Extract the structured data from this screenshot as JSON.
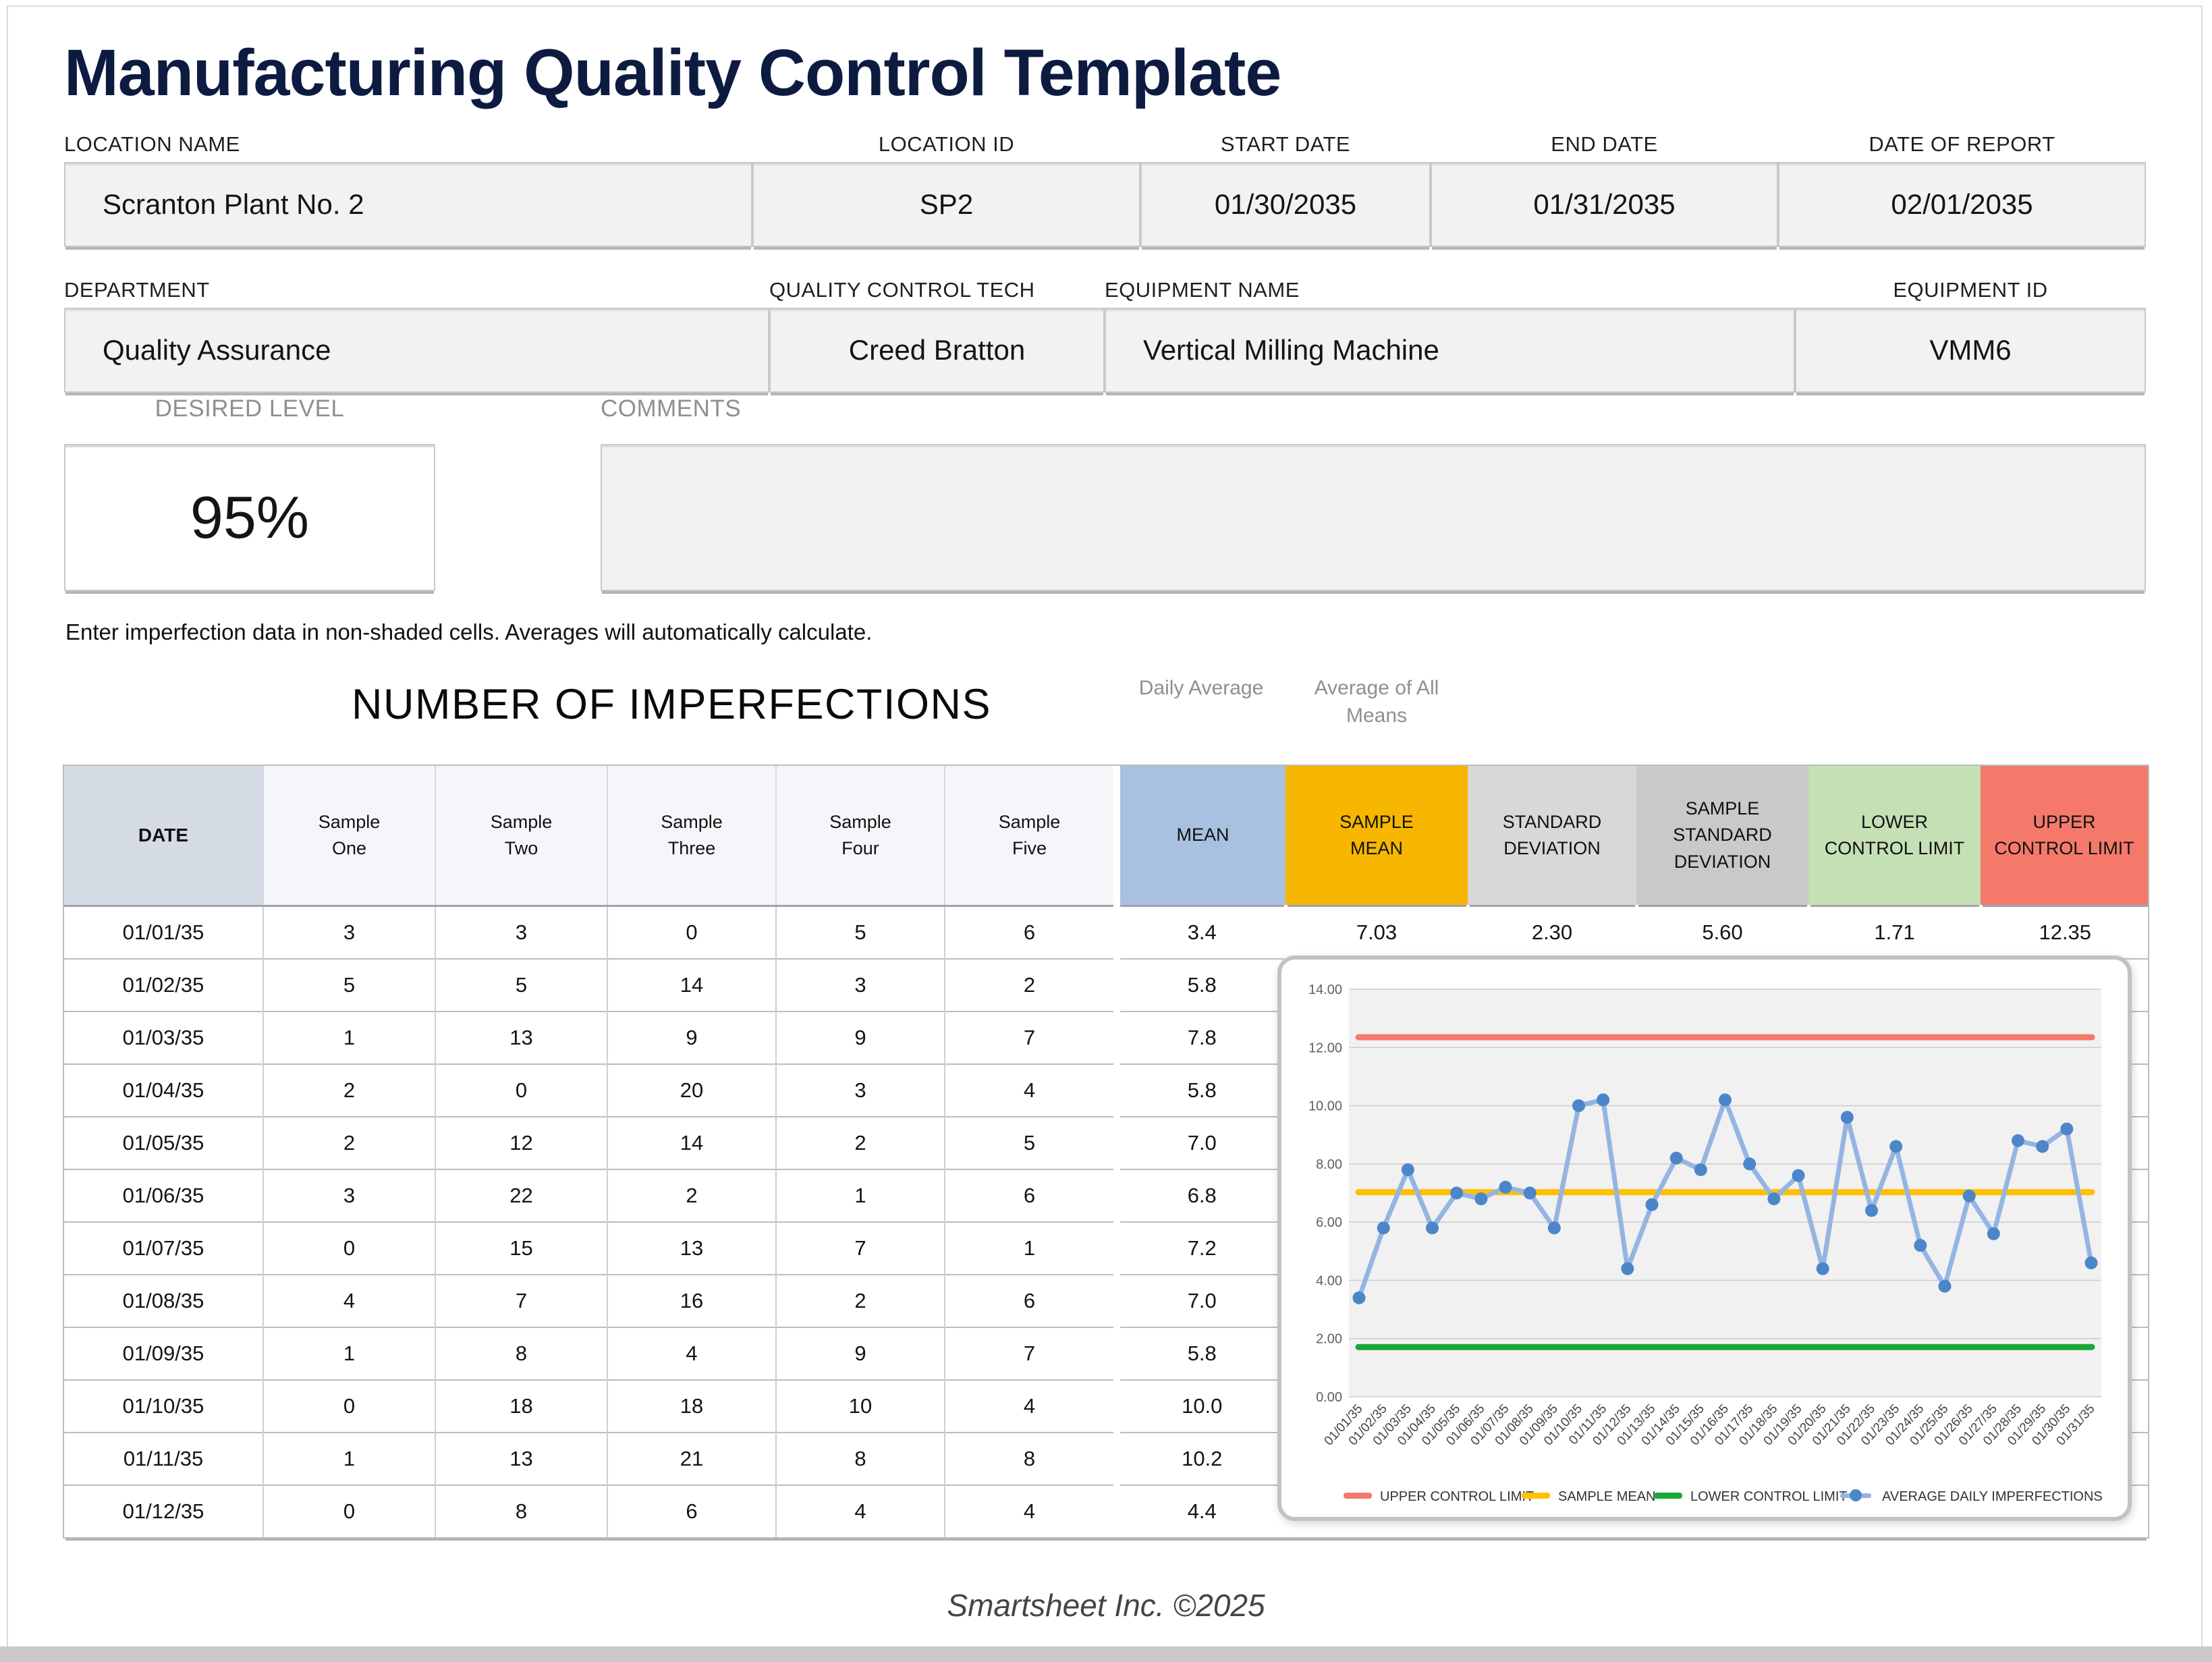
{
  "page": {
    "title": "Manufacturing Quality Control Template",
    "instruction": "Enter imperfection data in non-shaded cells. Averages will automatically calculate.",
    "footer": "Smartsheet Inc. ©2025"
  },
  "fields": {
    "location_name": {
      "label": "LOCATION NAME",
      "value": "Scranton Plant No. 2"
    },
    "location_id": {
      "label": "LOCATION ID",
      "value": "SP2"
    },
    "start_date": {
      "label": "START DATE",
      "value": "01/30/2035"
    },
    "end_date": {
      "label": "END DATE",
      "value": "01/31/2035"
    },
    "date_of_report": {
      "label": "DATE OF REPORT",
      "value": "02/01/2035"
    },
    "department": {
      "label": "DEPARTMENT",
      "value": "Quality Assurance"
    },
    "quality_control_tech": {
      "label": "QUALITY CONTROL TECH",
      "value": "Creed Bratton"
    },
    "equipment_name": {
      "label": "EQUIPMENT NAME",
      "value": "Vertical Milling Machine"
    },
    "equipment_id": {
      "label": "EQUIPMENT ID",
      "value": "VMM6"
    },
    "desired_level": {
      "label": "DESIRED LEVEL",
      "value": "95%"
    },
    "comments": {
      "label": "COMMENTS",
      "value": ""
    }
  },
  "table": {
    "section_title": "NUMBER OF IMPERFECTIONS",
    "mean_note": "Daily Average",
    "sample_mean_note": "Average of All Means",
    "columns": [
      "DATE",
      "Sample One",
      "Sample Two",
      "Sample Three",
      "Sample Four",
      "Sample Five",
      "MEAN",
      "SAMPLE MEAN",
      "STANDARD DEVIATION",
      "SAMPLE STANDARD DEVIATION",
      "LOWER CONTROL LIMIT",
      "UPPER CONTROL LIMIT"
    ],
    "stats": {
      "sample_mean": "7.03",
      "standard_deviation": "2.30",
      "sample_standard_deviation": "5.60",
      "lower_control_limit": "1.71",
      "upper_control_limit": "12.35"
    },
    "rows": [
      {
        "date": "01/01/35",
        "samples": [
          "3",
          "3",
          "0",
          "5",
          "6"
        ],
        "mean": "3.4"
      },
      {
        "date": "01/02/35",
        "samples": [
          "5",
          "5",
          "14",
          "3",
          "2"
        ],
        "mean": "5.8"
      },
      {
        "date": "01/03/35",
        "samples": [
          "1",
          "13",
          "9",
          "9",
          "7"
        ],
        "mean": "7.8"
      },
      {
        "date": "01/04/35",
        "samples": [
          "2",
          "0",
          "20",
          "3",
          "4"
        ],
        "mean": "5.8"
      },
      {
        "date": "01/05/35",
        "samples": [
          "2",
          "12",
          "14",
          "2",
          "5"
        ],
        "mean": "7.0"
      },
      {
        "date": "01/06/35",
        "samples": [
          "3",
          "22",
          "2",
          "1",
          "6"
        ],
        "mean": "6.8"
      },
      {
        "date": "01/07/35",
        "samples": [
          "0",
          "15",
          "13",
          "7",
          "1"
        ],
        "mean": "7.2"
      },
      {
        "date": "01/08/35",
        "samples": [
          "4",
          "7",
          "16",
          "2",
          "6"
        ],
        "mean": "7.0"
      },
      {
        "date": "01/09/35",
        "samples": [
          "1",
          "8",
          "4",
          "9",
          "7"
        ],
        "mean": "5.8"
      },
      {
        "date": "01/10/35",
        "samples": [
          "0",
          "18",
          "18",
          "10",
          "4"
        ],
        "mean": "10.0"
      },
      {
        "date": "01/11/35",
        "samples": [
          "1",
          "13",
          "21",
          "8",
          "8"
        ],
        "mean": "10.2"
      },
      {
        "date": "01/12/35",
        "samples": [
          "0",
          "8",
          "6",
          "4",
          "4"
        ],
        "mean": "4.4"
      }
    ]
  },
  "chart_data": {
    "type": "line",
    "title": "",
    "xlabel": "",
    "ylabel": "",
    "ylim": [
      0,
      14
    ],
    "ytick_step": 2,
    "grid": true,
    "legend_position": "bottom",
    "x": [
      "01/01/35",
      "01/02/35",
      "01/03/35",
      "01/04/35",
      "01/05/35",
      "01/06/35",
      "01/07/35",
      "01/08/35",
      "01/09/35",
      "01/10/35",
      "01/11/35",
      "01/12/35",
      "01/13/35",
      "01/14/35",
      "01/15/35",
      "01/16/35",
      "01/17/35",
      "01/18/35",
      "01/19/35",
      "01/20/35",
      "01/21/35",
      "01/22/35",
      "01/23/35",
      "01/24/35",
      "01/25/35",
      "01/26/35",
      "01/27/35",
      "01/28/35",
      "01/29/35",
      "01/30/35",
      "01/31/35"
    ],
    "series": [
      {
        "name": "UPPER CONTROL LIMIT",
        "type": "constant",
        "value": 12.35,
        "color": "#F4796B"
      },
      {
        "name": "SAMPLE MEAN",
        "type": "constant",
        "value": 7.03,
        "color": "#FFC000"
      },
      {
        "name": "LOWER CONTROL LIMIT",
        "type": "constant",
        "value": 1.71,
        "color": "#18A836"
      },
      {
        "name": "AVERAGE DAILY IMPERFECTIONS",
        "type": "line-markers",
        "color": "#94B5E3",
        "marker_color": "#4C86C9",
        "values": [
          3.4,
          5.8,
          7.8,
          5.8,
          7.0,
          6.8,
          7.2,
          7.0,
          5.8,
          10.0,
          10.2,
          4.4,
          6.6,
          8.2,
          7.8,
          10.2,
          8.0,
          6.8,
          7.6,
          4.4,
          9.6,
          6.4,
          8.6,
          5.2,
          3.8,
          6.9,
          5.6,
          8.8,
          8.6,
          9.2,
          4.6
        ]
      }
    ]
  }
}
